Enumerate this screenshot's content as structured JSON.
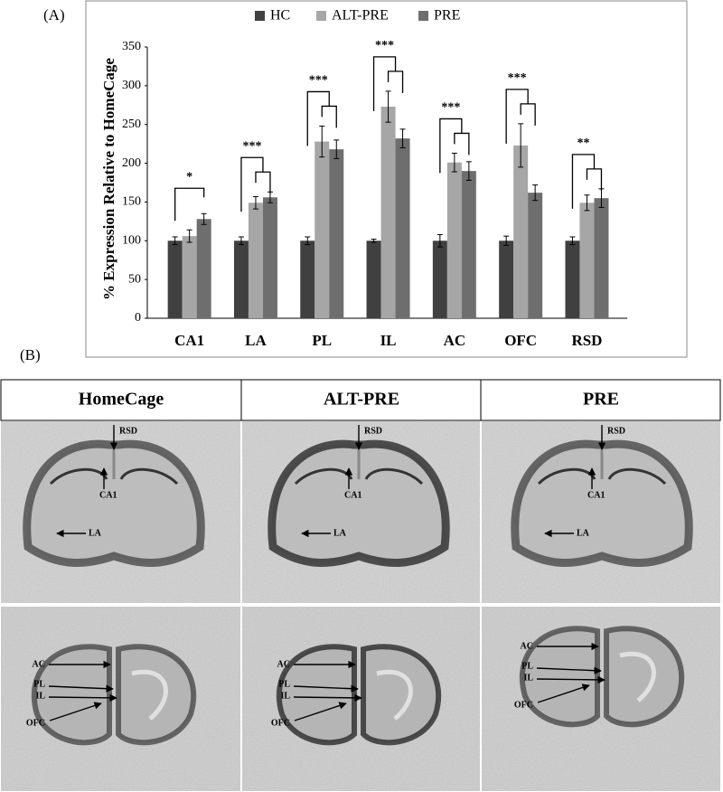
{
  "figure": {
    "label_a": "(A)",
    "label_b": "(B)"
  },
  "chart_data": {
    "type": "bar",
    "ylabel": "% Expression Relative to HomeCage",
    "categories": [
      "CA1",
      "LA",
      "PL",
      "IL",
      "AC",
      "OFC",
      "RSD"
    ],
    "series": [
      {
        "name": "HC",
        "color": "#404040",
        "values": [
          100,
          100,
          100,
          100,
          100,
          100,
          100
        ],
        "errors": [
          5,
          5,
          5,
          2,
          8,
          6,
          5
        ]
      },
      {
        "name": "ALT-PRE",
        "color": "#a6a6a6",
        "values": [
          106,
          149,
          228,
          273,
          201,
          223,
          149
        ],
        "errors": [
          8,
          8,
          20,
          20,
          12,
          28,
          10
        ]
      },
      {
        "name": "PRE",
        "color": "#6e6e6e",
        "values": [
          128,
          156,
          218,
          232,
          190,
          162,
          155
        ],
        "errors": [
          7,
          7,
          12,
          12,
          12,
          10,
          12
        ]
      }
    ],
    "annotations": [
      "*",
      "***",
      "***",
      "***",
      "***",
      "***",
      "**"
    ],
    "ylim": [
      0,
      350
    ],
    "yticks": [
      0,
      50,
      100,
      150,
      200,
      250,
      300,
      350
    ],
    "grid": false,
    "legend": "top"
  },
  "panel_b": {
    "columns": [
      "HomeCage",
      "ALT-PRE",
      "PRE"
    ],
    "images": [
      {
        "labels": [
          "RSD",
          "CA1",
          "LA"
        ]
      },
      {
        "labels": [
          "RSD",
          "CA1",
          "LA"
        ]
      },
      {
        "labels": [
          "RSD",
          "CA1",
          "LA"
        ]
      },
      {
        "labels": [
          "AC",
          "PL",
          "IL",
          "OFC"
        ]
      },
      {
        "labels": [
          "AC",
          "PL",
          "IL",
          "OFC"
        ]
      },
      {
        "labels": [
          "AC",
          "PL",
          "IL",
          "OFC"
        ]
      }
    ]
  }
}
